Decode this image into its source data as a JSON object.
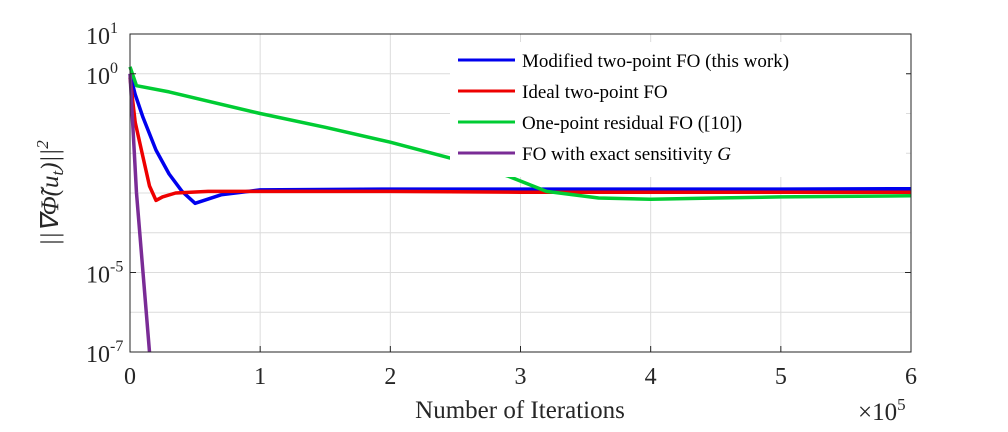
{
  "chart_data": {
    "type": "line",
    "xlabel": "Number of Iterations",
    "x_multiplier_label": "×10",
    "x_multiplier_exponent": "5",
    "ylabel_text": "||∇Φ̃(u",
    "ylabel_subscript": "t",
    "ylabel_close": ")||",
    "ylabel_power": "2",
    "yscale": "log",
    "xlim": [
      0,
      6
    ],
    "ylim": [
      1e-07,
      10
    ],
    "x_ticks": [
      "0",
      "1",
      "2",
      "3",
      "4",
      "5",
      "6"
    ],
    "y_ticks": [
      {
        "value": 10,
        "base": "10",
        "exp": "1"
      },
      {
        "value": 1,
        "base": "10",
        "exp": "0"
      },
      {
        "value": 1e-05,
        "base": "10",
        "exp": "-5"
      },
      {
        "value": 1e-07,
        "base": "10",
        "exp": "-7"
      }
    ],
    "grid": true,
    "legend_position": "top-right",
    "series": [
      {
        "name": "Modified two-point FO (this work)",
        "color": "#0000ee",
        "points": [
          [
            0,
            1.0
          ],
          [
            0.04,
            0.3
          ],
          [
            0.1,
            0.08
          ],
          [
            0.2,
            0.012
          ],
          [
            0.3,
            0.003
          ],
          [
            0.4,
            0.0011
          ],
          [
            0.5,
            0.00055
          ],
          [
            0.7,
            0.0009
          ],
          [
            1.0,
            0.0012
          ],
          [
            2.0,
            0.00125
          ],
          [
            3.0,
            0.00125
          ],
          [
            4.0,
            0.00125
          ],
          [
            5.0,
            0.00125
          ],
          [
            6.0,
            0.00128
          ]
        ]
      },
      {
        "name": "Ideal two-point FO",
        "color": "#ee0000",
        "points": [
          [
            0,
            0.8
          ],
          [
            0.04,
            0.06
          ],
          [
            0.1,
            0.008
          ],
          [
            0.15,
            0.0015
          ],
          [
            0.2,
            0.00065
          ],
          [
            0.25,
            0.0008
          ],
          [
            0.35,
            0.001
          ],
          [
            0.6,
            0.0011
          ],
          [
            1.0,
            0.0011
          ],
          [
            2.0,
            0.0011
          ],
          [
            3.0,
            0.00105
          ],
          [
            4.0,
            0.00105
          ],
          [
            5.0,
            0.00105
          ],
          [
            6.0,
            0.00105
          ]
        ]
      },
      {
        "name": "One-point residual FO ([10])",
        "color": "#00cc33",
        "points": [
          [
            0,
            1.5
          ],
          [
            0.05,
            0.5
          ],
          [
            0.3,
            0.35
          ],
          [
            1.0,
            0.1
          ],
          [
            1.5,
            0.045
          ],
          [
            2.0,
            0.019
          ],
          [
            2.5,
            0.007
          ],
          [
            2.9,
            0.0027
          ],
          [
            3.2,
            0.0011
          ],
          [
            3.6,
            0.00075
          ],
          [
            4.0,
            0.0007
          ],
          [
            4.5,
            0.00075
          ],
          [
            5.0,
            0.0008
          ],
          [
            6.0,
            0.00085
          ]
        ]
      },
      {
        "name": "FO with exact sensitivity G",
        "color": "#7a2c96",
        "points": [
          [
            0,
            1.0
          ],
          [
            0.05,
            0.001
          ],
          [
            0.1,
            1e-05
          ],
          [
            0.15,
            1e-07
          ]
        ]
      }
    ],
    "legend_labels": [
      {
        "text": "Modified two-point FO (this work)"
      },
      {
        "text": "Ideal two-point FO"
      },
      {
        "text": "One-point residual FO ([10])"
      },
      {
        "text": "FO with exact sensitivity ",
        "italic": "G"
      }
    ]
  }
}
